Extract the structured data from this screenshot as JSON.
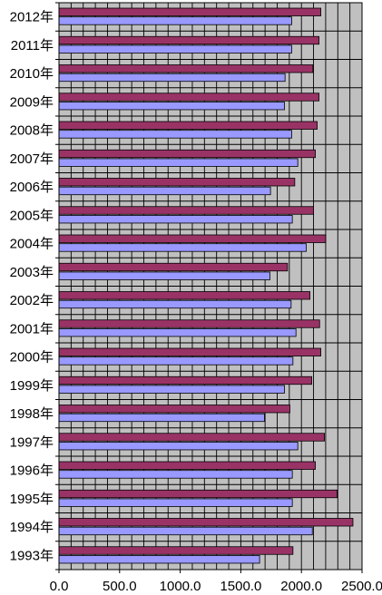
{
  "chart_data": {
    "type": "bar",
    "orientation": "horizontal",
    "categories": [
      "2012年",
      "2011年",
      "2010年",
      "2009年",
      "2008年",
      "2007年",
      "2006年",
      "2005年",
      "2004年",
      "2003年",
      "2002年",
      "2001年",
      "2000年",
      "1999年",
      "1998年",
      "1997年",
      "1996年",
      "1995年",
      "1994年",
      "1993年"
    ],
    "series": [
      {
        "color": "#993366",
        "values": [
          2160,
          2145,
          2095,
          2145,
          2130,
          2115,
          1945,
          2100,
          2200,
          1885,
          2070,
          2150,
          2160,
          2085,
          1905,
          2190,
          2115,
          2295,
          2425,
          1930
        ]
      },
      {
        "color": "#9999FF",
        "values": [
          1920,
          1920,
          1865,
          1860,
          1920,
          1970,
          1745,
          1925,
          2040,
          1740,
          1915,
          1955,
          1930,
          1860,
          1695,
          1970,
          1925,
          1925,
          2090,
          1655
        ]
      }
    ],
    "xlim": [
      0,
      2500
    ],
    "x_ticks": [
      "0.0",
      "500.0",
      "1000.0",
      "1500.0",
      "2000.0",
      "2500.0"
    ],
    "minor_gridlines_per_major": 5,
    "plot_background": "#C0C0C0",
    "gridline_color": "#000000",
    "legend": "none"
  }
}
